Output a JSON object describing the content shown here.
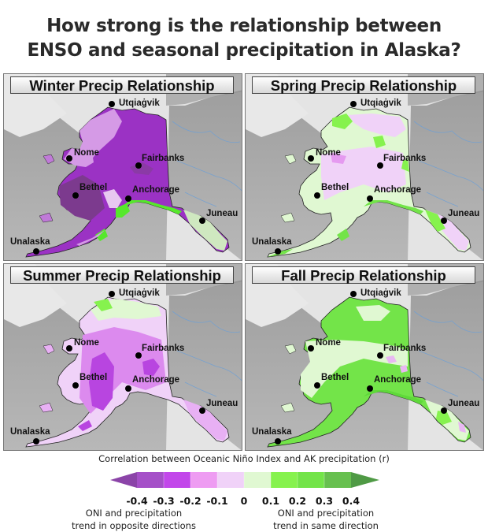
{
  "title": {
    "line1": "How strong is the relationship between",
    "line2": "ENSO and seasonal precipitation in Alaska?"
  },
  "panels": [
    {
      "id": "winter",
      "title": "Winter Precip Relationship"
    },
    {
      "id": "spring",
      "title": "Spring Precip Relationship"
    },
    {
      "id": "summer",
      "title": "Summer Precip Relationship"
    },
    {
      "id": "fall",
      "title": "Fall Precip Relationship"
    }
  ],
  "cities": [
    {
      "name": "Utqiaġvik",
      "dot": [
        137,
        38
      ],
      "label": [
        146,
        31
      ]
    },
    {
      "name": "Nome",
      "dot": [
        83,
        107
      ],
      "label": [
        89,
        94
      ]
    },
    {
      "name": "Fairbanks",
      "dot": [
        171,
        116
      ],
      "label": [
        175,
        101
      ]
    },
    {
      "name": "Bethel",
      "dot": [
        91,
        154
      ],
      "label": [
        96,
        138
      ]
    },
    {
      "name": "Anchorage",
      "dot": [
        158,
        158
      ],
      "label": [
        163,
        141
      ]
    },
    {
      "name": "Juneau",
      "dot": [
        252,
        186
      ],
      "label": [
        257,
        171
      ]
    },
    {
      "name": "Unalaska",
      "dot": [
        41,
        225
      ],
      "label": [
        8,
        207
      ]
    }
  ],
  "legend": {
    "title": "Correlation between Oceanic Niño Index and AK precipitation (r)",
    "ticks": [
      "-0.4",
      "-0.3",
      "-0.2",
      "-0.1",
      "0",
      "0.1",
      "0.2",
      "0.3",
      "0.4"
    ],
    "colors": [
      "#8b44a8",
      "#a550c8",
      "#c247ea",
      "#ee9cf2",
      "#f0d2f8",
      "#e0f8d2",
      "#86f24e",
      "#73e449",
      "#67c04f",
      "#4f9a45"
    ],
    "note_left": "ONI and precipitation\ntrend in opposite directions",
    "note_left_1": "ONI and precipitation",
    "note_left_2": "trend in opposite directions",
    "note_right_1": "ONI and precipitation",
    "note_right_2": "trend in same direction"
  },
  "chart_data": {
    "type": "heatmap",
    "title": "How strong is the relationship between ENSO and seasonal precipitation in Alaska?",
    "colorbar_label": "Correlation between Oceanic Niño Index and AK precipitation (r)",
    "colorbar_ticks": [
      -0.4,
      -0.3,
      -0.2,
      -0.1,
      0,
      0.1,
      0.2,
      0.3,
      0.4
    ],
    "colorbar_range": [
      -0.4,
      0.4
    ],
    "colorbar_extends": "both",
    "panels": [
      {
        "season": "Winter",
        "dominant_r": "-0.3 to -0.4 across most of mainland; positive 0.1-0.3 along south coast/Kenai/Kodiak"
      },
      {
        "season": "Spring",
        "dominant_r": "-0.1 to 0.1 mixed; weak negative interior, weak positive coast and north slope"
      },
      {
        "season": "Summer",
        "dominant_r": "-0.1 to -0.3 most of state; strongest negative SW and east interior; positive near Utqiaġvik"
      },
      {
        "season": "Fall",
        "dominant_r": "0.1 to 0.3 across most of state; weak near 0 in west-central band"
      }
    ],
    "annotations": [
      "ONI and precipitation trend in opposite directions",
      "ONI and precipitation trend in same direction"
    ],
    "locations": [
      "Utqiaġvik",
      "Nome",
      "Fairbanks",
      "Bethel",
      "Anchorage",
      "Juneau",
      "Unalaska"
    ]
  }
}
